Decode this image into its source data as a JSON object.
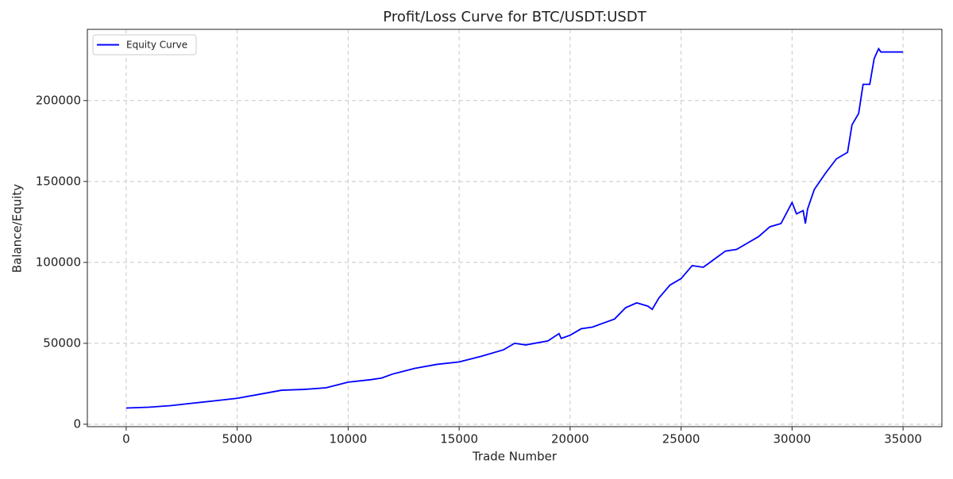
{
  "chart_data": {
    "type": "line",
    "title": "Profit/Loss Curve for BTC/USDT:USDT",
    "x_label": "Trade Number",
    "y_label": "Balance/Equity",
    "x": [
      0,
      1000,
      2000,
      3000,
      4000,
      5000,
      6000,
      7000,
      8000,
      9000,
      10000,
      11000,
      11500,
      12000,
      13000,
      14000,
      15000,
      16000,
      17000,
      17500,
      18000,
      19000,
      19500,
      19600,
      20000,
      20500,
      21000,
      22000,
      22500,
      23000,
      23500,
      23700,
      24000,
      24500,
      25000,
      25500,
      26000,
      26500,
      27000,
      27500,
      28000,
      28500,
      29000,
      29500,
      30000,
      30200,
      30500,
      30600,
      30700,
      31000,
      31500,
      32000,
      32500,
      32700,
      33000,
      33200,
      33500,
      33700,
      33900,
      34000,
      35000
    ],
    "series": [
      {
        "name": "Equity Curve",
        "color": "#0000ff",
        "values": [
          10000,
          10500,
          11500,
          13000,
          14500,
          16000,
          18500,
          21000,
          21500,
          22500,
          26000,
          27500,
          28500,
          31000,
          34500,
          37000,
          38500,
          42000,
          46000,
          50000,
          49000,
          51500,
          56000,
          53000,
          55000,
          59000,
          60000,
          65000,
          72000,
          75000,
          73000,
          71000,
          78000,
          86000,
          90000,
          98000,
          97000,
          102000,
          107000,
          108000,
          112000,
          116000,
          122000,
          124000,
          137000,
          130000,
          132000,
          124000,
          133000,
          145000,
          155000,
          164000,
          168000,
          185000,
          192000,
          210000,
          210000,
          226000,
          232000,
          230000,
          230000
        ]
      }
    ],
    "xlim": [
      -1750,
      36750
    ],
    "xticks": [
      0,
      5000,
      10000,
      15000,
      20000,
      25000,
      30000,
      35000
    ],
    "ylim": [
      -1500,
      244000
    ],
    "yticks": [
      0,
      50000,
      100000,
      150000,
      200000
    ],
    "grid": true,
    "legend": "upper left"
  }
}
